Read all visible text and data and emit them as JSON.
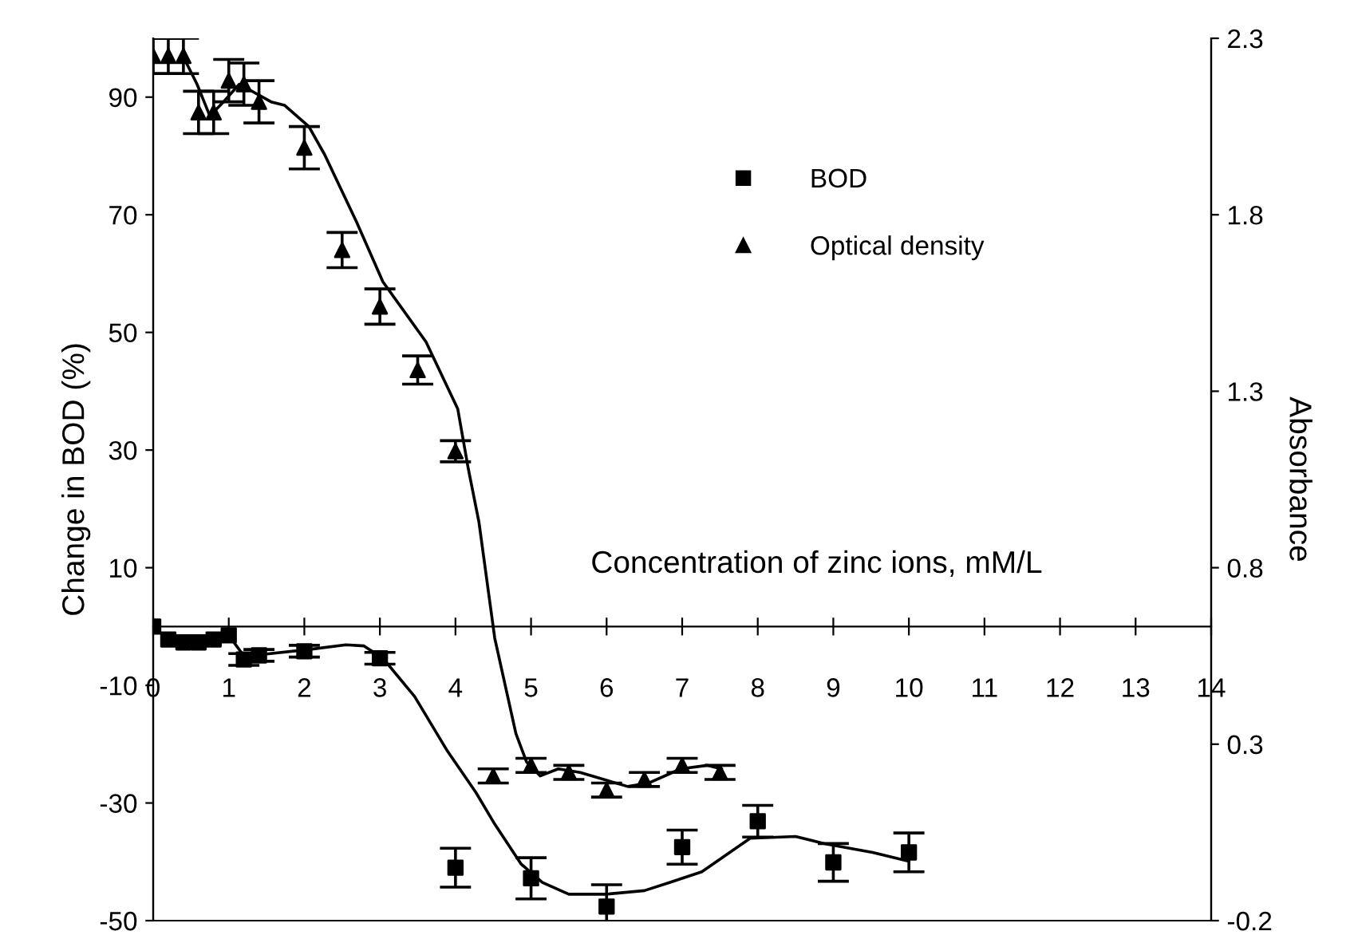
{
  "chart_data": {
    "type": "scatter",
    "xlabel": "Concentration of zinc ions, mM/L",
    "ylabel": "Change in BOD (%)",
    "y2label": "Absorbance",
    "xlim": [
      0,
      14
    ],
    "xticks": [
      0,
      1,
      2,
      3,
      4,
      5,
      6,
      7,
      8,
      9,
      10,
      11,
      12,
      13,
      14
    ],
    "ylim": [
      -50,
      100
    ],
    "yticks": [
      -50,
      -30,
      -10,
      10,
      30,
      50,
      70,
      90
    ],
    "y2lim": [
      -0.2,
      2.3
    ],
    "y2ticks": [
      -0.2,
      0.3,
      0.8,
      1.3,
      1.8,
      2.3
    ],
    "legend": "top right",
    "grid": false,
    "series": [
      {
        "name": "BOD",
        "marker": "square",
        "color": "#000000",
        "x": [
          0,
          0.2,
          0.4,
          0.6,
          0.8,
          1.0,
          1.2,
          1.4,
          2,
          3,
          4,
          5,
          6,
          7,
          8,
          9,
          10
        ],
        "values": [
          0,
          -2.2,
          -2.7,
          -2.7,
          -2.2,
          -1.5,
          -5.6,
          -4.9,
          -4.2,
          -5.4,
          -41,
          -42.8,
          -47.6,
          -37.5,
          -33.1,
          -40.1,
          -38.4
        ],
        "errors": [
          null,
          null,
          null,
          null,
          null,
          null,
          1,
          1,
          1,
          1,
          3.3,
          3.5,
          3.7,
          2.9,
          2.7,
          3.2,
          3.3
        ]
      },
      {
        "type": "line",
        "color": "#000000",
        "marker": "none",
        "x": [
          1.0,
          1.2,
          1.4,
          2.06,
          2.55,
          2.79,
          3.04,
          3.46,
          3.88,
          4.27,
          4.52,
          4.87,
          5.15,
          5.5,
          6.0,
          6.5,
          6.84,
          7.26,
          7.9,
          8.5,
          8.88,
          9.52,
          10.0
        ],
        "values": [
          -1.5,
          -5,
          -4.8,
          -3.9,
          -3.1,
          -3.3,
          -5.4,
          -11.9,
          -20.9,
          -28.2,
          -33.6,
          -40.4,
          -43.5,
          -45.5,
          -45.5,
          -44.9,
          -43.5,
          -41.7,
          -36,
          -35.7,
          -36.9,
          -38.4,
          -39.9
        ]
      },
      {
        "name": "Optical density",
        "marker": "triangle",
        "color": "#000000",
        "axis": "y2",
        "x": [
          0,
          0.2,
          0.4,
          0.6,
          0.8,
          1.0,
          1.2,
          1.4,
          2,
          2.5,
          3,
          3.5,
          4,
          4.5,
          5,
          5.5,
          6,
          6.5,
          7,
          7.5
        ],
        "values": [
          2.25,
          2.25,
          2.25,
          2.09,
          2.09,
          2.18,
          2.17,
          2.12,
          1.99,
          1.7,
          1.54,
          1.36,
          1.13,
          0.21,
          0.24,
          0.22,
          0.17,
          0.2,
          0.24,
          0.22
        ],
        "errors": [
          0.05,
          0.05,
          0.05,
          0.06,
          0.06,
          0.06,
          0.06,
          0.06,
          0.06,
          0.05,
          0.05,
          0.04,
          0.03,
          0.02,
          0.02,
          0.02,
          0.02,
          0.02,
          0.02,
          0.02
        ]
      },
      {
        "type": "line",
        "color": "#000000",
        "marker": "none",
        "axis": "y2",
        "x": [
          0.44,
          0.58,
          0.75,
          0.93,
          1.14,
          1.56,
          1.74,
          2.06,
          2.27,
          2.69,
          3.04,
          3.61,
          4.03,
          4.17,
          4.31,
          4.52,
          4.8,
          4.94,
          5.12,
          5.36,
          5.65,
          6.28,
          6.56,
          6.98,
          7.33,
          7.52
        ],
        "values": [
          2.23,
          2.17,
          2.08,
          2.12,
          2.17,
          2.12,
          2.11,
          2.05,
          1.97,
          1.78,
          1.61,
          1.44,
          1.25,
          1.08,
          0.93,
          0.6,
          0.33,
          0.25,
          0.21,
          0.23,
          0.22,
          0.18,
          0.19,
          0.23,
          0.24,
          0.23
        ]
      }
    ]
  }
}
